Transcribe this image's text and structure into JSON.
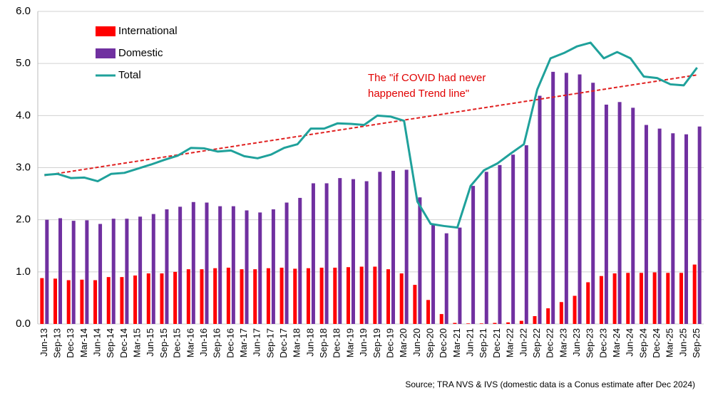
{
  "chart_data": {
    "type": "bar",
    "categories": [
      "Jun-13",
      "Sep-13",
      "Dec-13",
      "Mar-14",
      "Jun-14",
      "Sep-14",
      "Dec-14",
      "Mar-15",
      "Jun-15",
      "Sep-15",
      "Dec-15",
      "Mar-16",
      "Jun-16",
      "Sep-16",
      "Dec-16",
      "Mar-17",
      "Jun-17",
      "Sep-17",
      "Dec-17",
      "Mar-18",
      "Jun-18",
      "Sep-18",
      "Dec-18",
      "Mar-19",
      "Jun-19",
      "Sep-19",
      "Dec-19",
      "Mar-20",
      "Jun-20",
      "Sep-20",
      "Dec-20",
      "Mar-21",
      "Jun-21",
      "Sep-21",
      "Dec-21",
      "Mar-22",
      "Jun-22",
      "Sep-22",
      "Dec-22",
      "Mar-23",
      "Jun-23",
      "Sep-23",
      "Dec-23",
      "Mar-24",
      "Jun-24",
      "Sep-24",
      "Dec-24",
      "Mar-25",
      "Jun-25",
      "Sep-25"
    ],
    "series": [
      {
        "name": "International",
        "color": "#ff0000",
        "kind": "bar",
        "values": [
          0.88,
          0.87,
          0.84,
          0.85,
          0.84,
          0.9,
          0.9,
          0.93,
          0.97,
          0.97,
          1.0,
          1.05,
          1.05,
          1.07,
          1.08,
          1.05,
          1.05,
          1.07,
          1.08,
          1.06,
          1.07,
          1.08,
          1.08,
          1.09,
          1.1,
          1.1,
          1.05,
          0.97,
          0.75,
          0.46,
          0.19,
          0.02,
          0.01,
          0.01,
          0.02,
          0.03,
          0.06,
          0.15,
          0.3,
          0.42,
          0.54,
          0.8,
          0.92,
          0.97,
          0.98,
          0.98,
          0.99,
          0.98,
          0.98,
          1.14
        ]
      },
      {
        "name": "Domestic",
        "color": "#7030a0",
        "kind": "bar",
        "values": [
          2.0,
          2.03,
          1.98,
          1.99,
          1.92,
          2.02,
          2.02,
          2.06,
          2.11,
          2.2,
          2.25,
          2.34,
          2.33,
          2.26,
          2.26,
          2.18,
          2.14,
          2.2,
          2.33,
          2.42,
          2.7,
          2.7,
          2.8,
          2.78,
          2.74,
          2.92,
          2.94,
          2.96,
          2.43,
          1.91,
          1.74,
          1.85,
          2.65,
          2.92,
          3.05,
          3.25,
          3.43,
          4.38,
          4.84,
          4.82,
          4.79,
          4.63,
          4.21,
          4.26,
          4.15,
          3.82,
          3.75,
          3.66,
          3.64,
          3.79
        ]
      },
      {
        "name": "Total",
        "color": "#1fa19b",
        "kind": "line",
        "values": [
          2.86,
          2.88,
          2.8,
          2.81,
          2.74,
          2.88,
          2.9,
          2.98,
          3.06,
          3.15,
          3.23,
          3.38,
          3.37,
          3.31,
          3.33,
          3.22,
          3.18,
          3.25,
          3.38,
          3.45,
          3.75,
          3.75,
          3.85,
          3.84,
          3.82,
          4.0,
          3.98,
          3.9,
          2.35,
          1.92,
          1.88,
          1.85,
          2.65,
          2.95,
          3.08,
          3.27,
          3.45,
          4.5,
          5.1,
          5.2,
          5.33,
          5.4,
          5.1,
          5.22,
          5.1,
          4.75,
          4.72,
          4.6,
          4.58,
          4.92
        ]
      }
    ],
    "trend_line": {
      "start": 2.85,
      "end": 4.78,
      "color": "#e02020",
      "annotation": [
        "The \"if COVID had never",
        "happened Trend line\""
      ]
    },
    "ylim": [
      0,
      6
    ],
    "yticks": [
      {
        "value": 0,
        "label": "0.0"
      },
      {
        "value": 1,
        "label": "1.0"
      },
      {
        "value": 2,
        "label": "2.0"
      },
      {
        "value": 3,
        "label": "3.0"
      },
      {
        "value": 4,
        "label": "4.0"
      },
      {
        "value": 5,
        "label": "5.0"
      },
      {
        "value": 6,
        "label": "6.0"
      }
    ],
    "grid": true,
    "legend": "top-left",
    "source": "Source; TRA NVS & IVS (domestic data is a Conus estimate after Dec 2024)"
  }
}
